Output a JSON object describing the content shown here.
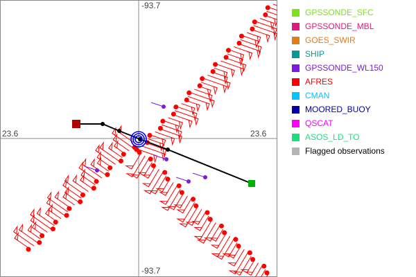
{
  "chart_data": {
    "type": "scatter",
    "center": {
      "lat": 23.6,
      "lon": -93.7
    },
    "axis_labels": {
      "top": "-93.7",
      "bottom": "-93.7",
      "left": "23.6",
      "right": "23.6"
    },
    "grid": false,
    "legend_placement": "right",
    "legend": [
      {
        "name": "GPSSONDE_SFC",
        "color": "#7ce21a"
      },
      {
        "name": "GPSSONDE_MBL",
        "color": "#e01a7a"
      },
      {
        "name": "GOES_SWIR",
        "color": "#e07c1a"
      },
      {
        "name": "SHIP",
        "color": "#009c94"
      },
      {
        "name": "GPSSONDE_WL150",
        "color": "#7c1ae0"
      },
      {
        "name": "AFRES",
        "color": "#ff0000"
      },
      {
        "name": "CMAN",
        "color": "#00c4ff"
      },
      {
        "name": "MOORED_BUOY",
        "color": "#0000a8"
      },
      {
        "name": "QSCAT",
        "color": "#ff00ff"
      },
      {
        "name": "ASOS_LD_TO",
        "color": "#1ae07c"
      },
      {
        "name": "Flagged observations",
        "color": "#b4b4b4",
        "label_color": "#000000"
      }
    ],
    "storm_track": [
      {
        "lon": -94.15,
        "lat": 23.705
      },
      {
        "lon": -93.96,
        "lat": 23.705
      },
      {
        "lon": -93.84,
        "lat": 23.655
      },
      {
        "lon": -93.69,
        "lat": 23.595
      },
      {
        "lon": -93.49,
        "lat": 23.52
      },
      {
        "lon": -92.885,
        "lat": 23.275
      }
    ],
    "storm_center": {
      "lon": -93.7,
      "lat": 23.595
    },
    "afres_legs": [
      {
        "from": {
          "lon": -94.48,
          "lat": 22.8
        },
        "to": {
          "lon": -93.72,
          "lat": 23.56
        }
      },
      {
        "from": {
          "lon": -93.7,
          "lat": 23.52
        },
        "to": {
          "lon": -92.73,
          "lat": 24.57
        }
      },
      {
        "from": {
          "lon": -93.68,
          "lat": 23.5
        },
        "to": {
          "lon": -92.76,
          "lat": 22.63
        }
      }
    ]
  }
}
